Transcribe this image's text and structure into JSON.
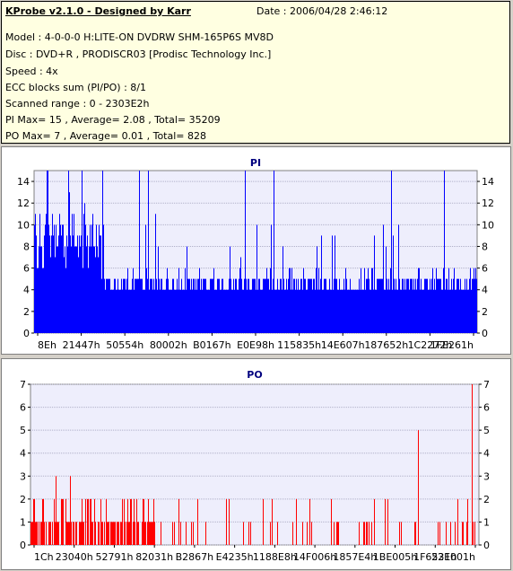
{
  "info": {
    "title": "KProbe v2.1.0 - Designed by Karr",
    "date": "Date : 2006/04/28 2:46:12",
    "lines": [
      "Model : 4-0-0-0 H:LITE-ON DVDRW SHM-165P6S MV8D",
      "Disc : DVD+R , PRODISCR03 [Prodisc Technology Inc.]",
      "Speed : 4x",
      "ECC blocks sum (PI/PO) : 8/1",
      "Scanned range : 0 - 2303E2h",
      "PI Max= 15 , Average= 2.08 , Total= 35209",
      "PO Max= 7 , Average= 0.01 , Total= 828"
    ]
  },
  "colors": {
    "pi_fill": "#0000ff",
    "po_fill": "#ff0000",
    "plot_bg": "#eeeefc",
    "grid": "#b0b0c8"
  },
  "chart_data": [
    {
      "type": "bar",
      "title": "PI",
      "ylim": [
        0,
        15
      ],
      "yticks": [
        0,
        2,
        4,
        6,
        8,
        10,
        12,
        14
      ],
      "xtick_labels": [
        "8Eh",
        "21447h",
        "50554h",
        "80002h",
        "B0167h",
        "E0E98h",
        "115835h",
        "14E607h",
        "187652h",
        "1C2272h",
        "1FE261h"
      ],
      "grid": true,
      "max": 15,
      "average": 2.08,
      "total": 35209
    },
    {
      "type": "bar",
      "title": "PO",
      "ylim": [
        0,
        7
      ],
      "yticks": [
        0,
        1,
        2,
        3,
        4,
        5,
        6,
        7
      ],
      "xtick_labels": [
        "1Ch",
        "23040h",
        "52791h",
        "82031h",
        "B2867h",
        "E4235h",
        "1188E8h",
        "14F006h",
        "1857E4h",
        "1BE005h",
        "1F6531h",
        "22E001h"
      ],
      "grid": true,
      "max": 7,
      "average": 0.01,
      "total": 828
    }
  ]
}
